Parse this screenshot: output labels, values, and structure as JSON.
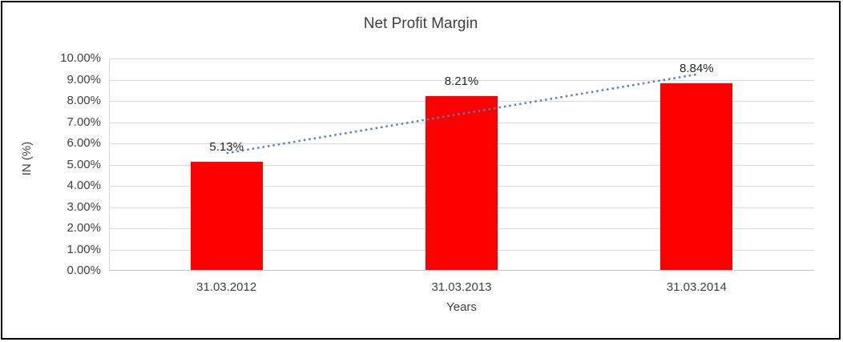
{
  "chart_data": {
    "type": "bar",
    "title": "Net Profit Margin",
    "categories": [
      "31.03.2012",
      "31.03.2013",
      "31.03.2014"
    ],
    "values": [
      5.13,
      8.21,
      8.84
    ],
    "data_labels": [
      "5.13%",
      "8.21%",
      "8.84%"
    ],
    "xlabel": "Years",
    "ylabel": "IN (%)",
    "ylim": [
      0,
      10
    ],
    "ytick_step": 1,
    "ytick_labels": [
      "0.00%",
      "1.00%",
      "2.00%",
      "3.00%",
      "4.00%",
      "5.00%",
      "6.00%",
      "7.00%",
      "8.00%",
      "9.00%",
      "10.00%"
    ],
    "grid": true,
    "legend": "none",
    "bar_color": "#ff0000",
    "gridline_color": "#d9d9d9",
    "trendline": {
      "type": "linear",
      "style": "dotted",
      "color": "#4f81bd"
    }
  }
}
